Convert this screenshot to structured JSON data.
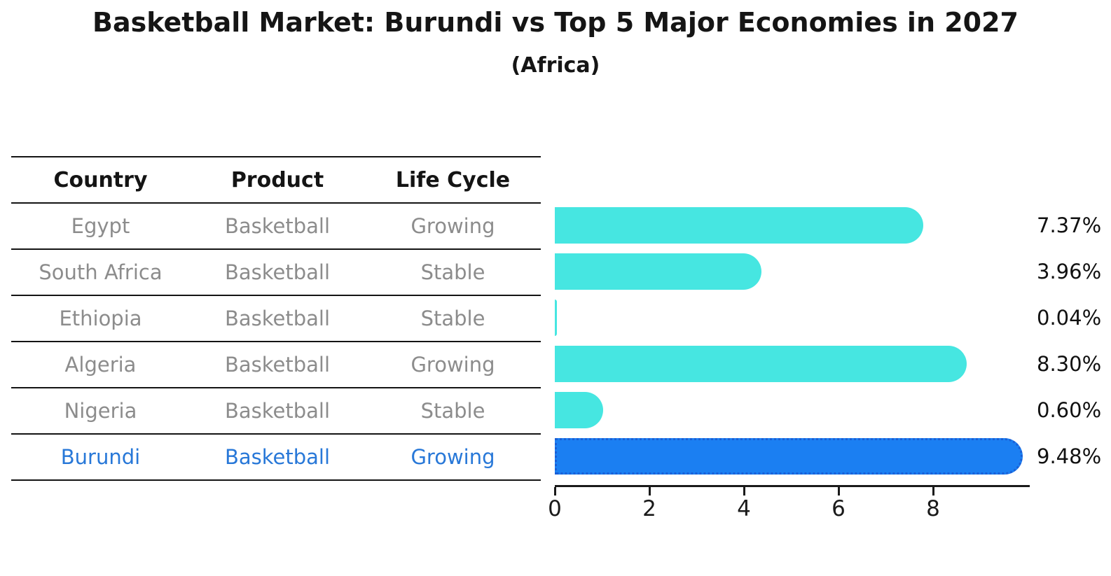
{
  "title": "Basketball Market: Burundi vs Top 5 Major Economies in 2027",
  "subtitle": "(Africa)",
  "table": {
    "headers": [
      "Country",
      "Product",
      "Life Cycle"
    ],
    "rows": [
      {
        "country": "Egypt",
        "product": "Basketball",
        "life_cycle": "Growing",
        "highlight": false
      },
      {
        "country": "South Africa",
        "product": "Basketball",
        "life_cycle": "Stable",
        "highlight": false
      },
      {
        "country": "Ethiopia",
        "product": "Basketball",
        "life_cycle": "Stable",
        "highlight": false
      },
      {
        "country": "Algeria",
        "product": "Basketball",
        "life_cycle": "Growing",
        "highlight": false
      },
      {
        "country": "Nigeria",
        "product": "Basketball",
        "life_cycle": "Stable",
        "highlight": true
      }
    ]
  },
  "chart_data": {
    "type": "bar",
    "orientation": "horizontal",
    "categories": [
      "Egypt",
      "South Africa",
      "Ethiopia",
      "Algeria",
      "Nigeria",
      "Burundi"
    ],
    "values": [
      7.37,
      3.96,
      0.04,
      8.3,
      0.6,
      9.48
    ],
    "value_labels": [
      "7.37%",
      "3.96%",
      "0.04%",
      "8.30%",
      "0.60%",
      "9.48%"
    ],
    "x_ticks": [
      0,
      2,
      4,
      6,
      8
    ],
    "xlim": [
      0,
      10
    ],
    "grid": false,
    "legend": "none",
    "highlight_index": 5,
    "colors": {
      "bar": "#46e6e1",
      "highlight_fill": "#1b7ff2",
      "highlight_border": "#1a5fd6",
      "highlight_text": "#2878d8",
      "table_text": "#8c8c8c",
      "axis": "#1a1a1a",
      "label_text": "#111111"
    }
  }
}
